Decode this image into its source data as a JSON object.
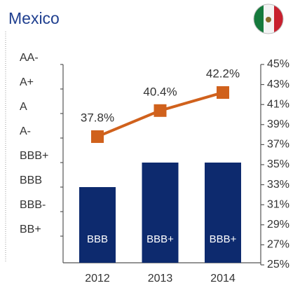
{
  "chart_data": {
    "type": "bar_line",
    "title": "Mexico",
    "categories": [
      "2012",
      "2013",
      "2014"
    ],
    "y_categories": [
      "BB+",
      "BBB-",
      "BBB",
      "BBB+",
      "A-",
      "A",
      "A+",
      "AA-"
    ],
    "series": [
      {
        "type": "bar",
        "color": "#0d2a6e",
        "values": [
          "BBB",
          "BBB+",
          "BBB+"
        ]
      },
      {
        "type": "line",
        "axis": "y2",
        "color": "#d0611c",
        "values": [
          37.8,
          40.4,
          42.2
        ],
        "value_labels": [
          "37.8%",
          "40.4%",
          "42.2%"
        ]
      }
    ],
    "y2lim": [
      25,
      45
    ],
    "y2ticks": [
      {
        "value": 25,
        "label": "25%"
      },
      {
        "value": 27,
        "label": "27%"
      },
      {
        "value": 29,
        "label": "29%"
      },
      {
        "value": 31,
        "label": "31%"
      },
      {
        "value": 33,
        "label": "33%"
      },
      {
        "value": 35,
        "label": "35%"
      },
      {
        "value": 37,
        "label": "37%"
      },
      {
        "value": 39,
        "label": "39%"
      },
      {
        "value": 41,
        "label": "41%"
      },
      {
        "value": 43,
        "label": "43%"
      },
      {
        "value": 45,
        "label": "45%"
      }
    ]
  }
}
